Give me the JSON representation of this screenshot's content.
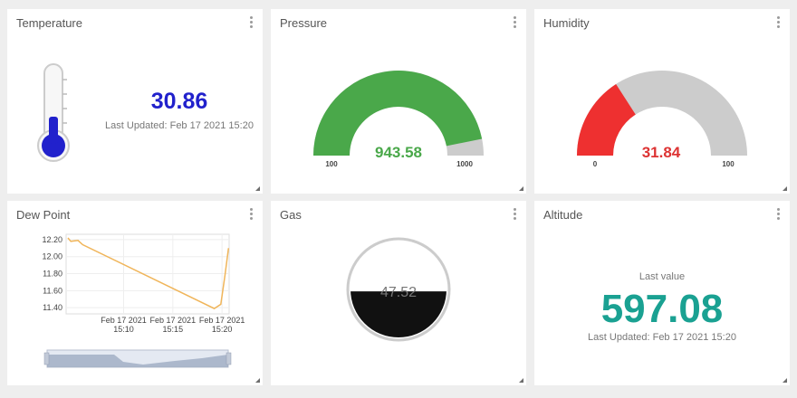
{
  "widgets": {
    "temperature": {
      "title": "Temperature",
      "value": "30.86",
      "last_updated": "Last Updated: Feb 17 2021 15:20",
      "color": "#2121cc",
      "level": 0.37
    },
    "pressure": {
      "title": "Pressure",
      "value": "943.58",
      "min": "100",
      "max": "1000",
      "fraction": 0.937,
      "fill_color": "#4aa84a",
      "track_color": "#cccccc"
    },
    "humidity": {
      "title": "Humidity",
      "value": "31.84",
      "min": "0",
      "max": "100",
      "fraction": 0.318,
      "fill_color": "#ee3030",
      "track_color": "#cccccc"
    },
    "dew_point": {
      "title": "Dew Point",
      "chart_data": {
        "type": "line",
        "x_tick_labels": [
          [
            "Feb 17 2021",
            "15:10"
          ],
          [
            "Feb 17 2021",
            "15:15"
          ],
          [
            "Feb 17 2021",
            "15:20"
          ]
        ],
        "y_tick_labels": [
          "12.20",
          "12.00",
          "11.80",
          "11.60",
          "11.40"
        ],
        "ylim": [
          11.37,
          12.22
        ],
        "series": [
          {
            "color": "#f0b55a",
            "points": [
              [
                15.073,
                12.22
              ],
              [
                15.078,
                12.18
              ],
              [
                15.09,
                12.19
              ],
              [
                15.098,
                12.14
              ],
              [
                15.32,
                11.39
              ],
              [
                15.331,
                11.44
              ],
              [
                15.338,
                11.78
              ],
              [
                15.344,
                12.1
              ]
            ]
          }
        ],
        "grid": true,
        "range_selector": true
      }
    },
    "gas": {
      "title": "Gas",
      "value": "47.52",
      "fill_fraction": 0.48,
      "fill_color": "#111111"
    },
    "altitude": {
      "title": "Altitude",
      "label": "Last value",
      "value": "597.08",
      "last_updated": "Last Updated: Feb 17 2021 15:20",
      "color": "#1aa192"
    }
  }
}
